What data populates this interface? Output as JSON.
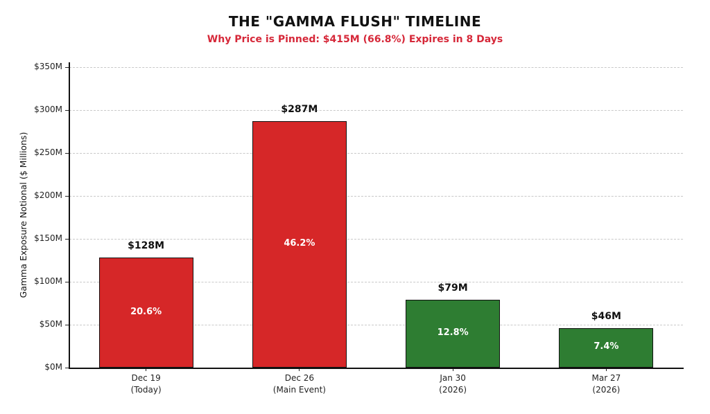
{
  "chart_data": {
    "type": "bar",
    "title": "THE \"GAMMA FLUSH\" TIMELINE",
    "subtitle": "Why Price is Pinned: $415M (66.8%) Expires in 8 Days",
    "ylabel": "Gamma Exposure Notional ($ Millions)",
    "xlabel": "",
    "ylim": [
      0,
      350
    ],
    "ytick_values": [
      0,
      50,
      100,
      150,
      200,
      250,
      300,
      350
    ],
    "ytick_labels": [
      "$0M",
      "$50M",
      "$100M",
      "$150M",
      "$200M",
      "$250M",
      "$300M",
      "$350M"
    ],
    "grid": "horizontal-dashed",
    "legend": "none",
    "categories": [
      [
        "Dec 19",
        "(Today)"
      ],
      [
        "Dec 26",
        "(Main Event)"
      ],
      [
        "Jan 30",
        "(2026)"
      ],
      [
        "Mar 27",
        "(2026)"
      ]
    ],
    "values": [
      128,
      287,
      79,
      46
    ],
    "value_labels": [
      "$128M",
      "$287M",
      "$79M",
      "$46M"
    ],
    "pct_labels": [
      "20.6%",
      "46.2%",
      "12.8%",
      "7.4%"
    ],
    "bar_colors": [
      "#d62728",
      "#d62728",
      "#2e7d32",
      "#2e7d32"
    ],
    "colors": {
      "red_bar": "#d62728",
      "green_bar": "#2e7d32",
      "subtitle": "#d62839",
      "grid": "#c8c8c8",
      "bar_edge": "#111111",
      "background": "#ffffff"
    }
  }
}
